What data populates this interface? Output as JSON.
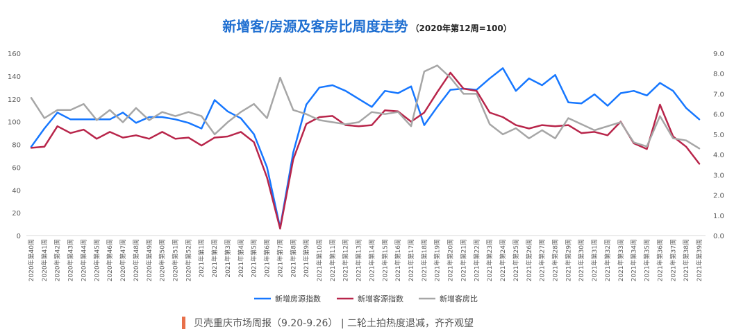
{
  "title": "新增客/房源及客房比周度走势",
  "subtitle": "（2020年第12周=100）",
  "footer": "贝壳重庆市场周报（9.20-9.26）  | 二轮土拍热度退减，齐齐观望",
  "colors": {
    "listing": "#1677ff",
    "client": "#b8254a",
    "ratio": "#a6a6a6",
    "accent": "#e8704a"
  },
  "chart_data": {
    "type": "line",
    "categories": [
      "2020年第40周",
      "2020年第41周",
      "2020年第42周",
      "2020年第43周",
      "2020年第44周",
      "2020年第45周",
      "2020年第46周",
      "2020年第47周",
      "2020年第48周",
      "2020年第49周",
      "2020年第50周",
      "2020年第51周",
      "2020年第52周",
      "2021年第1周",
      "2021年第2周",
      "2021年第3周",
      "2021年第4周",
      "2021年第5周",
      "2021年第6周",
      "2021年第7周",
      "2021年第8周",
      "2021年第9周",
      "2021年第10周",
      "2021年第11周",
      "2021年第12周",
      "2021年第13周",
      "2021年第14周",
      "2021年第15周",
      "2021年第16周",
      "2021年第17周",
      "2021年第18周",
      "2021年第19周",
      "2021年第20周",
      "2021年第21周",
      "2021年第22周",
      "2021年第23周",
      "2021年第24周",
      "2021年第25周",
      "2021年第26周",
      "2021年第27周",
      "2021年第28周",
      "2021年第29周",
      "2021年第30周",
      "2021年第31周",
      "2021年第32周",
      "2021年第33周",
      "2021年第34周",
      "2021年第35周",
      "2021年第36周",
      "2021年第37周",
      "2021年第38周",
      "2021年第39周"
    ],
    "left_ylim": [
      0,
      160
    ],
    "left_yticks": [
      "0",
      "20",
      "40",
      "60",
      "80",
      "100",
      "120",
      "140",
      "160"
    ],
    "right_ylim": [
      0,
      9
    ],
    "right_yticks": [
      "0.0",
      "1.0",
      "2.0",
      "3.0",
      "4.0",
      "5.0",
      "6.0",
      "7.0",
      "8.0",
      "9.0"
    ],
    "grid": false,
    "legend_position": "bottom",
    "series": [
      {
        "name": "新增房源指数",
        "axis": "left",
        "values": [
          78,
          94,
          108,
          102,
          102,
          102,
          102,
          108,
          99,
          104,
          104,
          102,
          99,
          94,
          119,
          109,
          103,
          89,
          60,
          7,
          73,
          115,
          130,
          132,
          127,
          120,
          113,
          127,
          125,
          131,
          97,
          113,
          128,
          129,
          128,
          138,
          147,
          127,
          138,
          132,
          141,
          117,
          116,
          124,
          114,
          125,
          127,
          123,
          134,
          127,
          112,
          102
        ]
      },
      {
        "name": "新增客源指数",
        "axis": "left",
        "values": [
          77,
          78,
          96,
          90,
          93,
          85,
          91,
          86,
          88,
          85,
          91,
          85,
          86,
          79,
          86,
          87,
          91,
          82,
          51,
          6,
          67,
          98,
          104,
          105,
          97,
          96,
          97,
          110,
          109,
          100,
          108,
          126,
          143,
          129,
          127,
          108,
          104,
          97,
          94,
          97,
          96,
          97,
          90,
          91,
          88,
          100,
          81,
          76,
          115,
          87,
          78,
          63
        ]
      },
      {
        "name": "新增客房比",
        "axis": "right",
        "values": [
          6.8,
          5.8,
          6.2,
          6.2,
          6.5,
          5.7,
          6.2,
          5.6,
          6.3,
          5.7,
          6.1,
          5.9,
          6.1,
          5.9,
          5.0,
          5.6,
          6.1,
          6.5,
          5.8,
          7.8,
          6.2,
          6.0,
          5.7,
          5.6,
          5.5,
          5.6,
          6.1,
          6.0,
          6.1,
          5.4,
          8.1,
          8.4,
          7.8,
          7.0,
          7.0,
          5.5,
          5.0,
          5.3,
          4.8,
          5.2,
          4.8,
          5.8,
          5.5,
          5.2,
          5.4,
          5.6,
          4.6,
          4.4,
          5.9,
          4.8,
          4.7,
          4.3
        ]
      }
    ]
  }
}
